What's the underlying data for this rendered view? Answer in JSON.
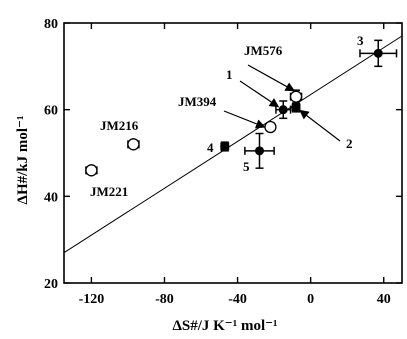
{
  "chart_data": {
    "type": "scatter",
    "xlabel": "ΔS#/J K⁻¹ mol⁻¹",
    "ylabel": "ΔH#/kJ mol⁻¹",
    "xlim": [
      -135,
      50
    ],
    "ylim": [
      20,
      80
    ],
    "x_ticks": [
      -120,
      -80,
      -40,
      0,
      40
    ],
    "y_ticks": [
      20,
      40,
      60,
      80
    ],
    "x_tick_labels": [
      "-120",
      "-80",
      "-40",
      "0",
      "40"
    ],
    "y_tick_labels": [
      "20",
      "40",
      "60",
      "80"
    ],
    "points": [
      {
        "label": "JM221",
        "x": -120,
        "y": 46,
        "marker": "open",
        "xerr": 3,
        "yerr": 0
      },
      {
        "label": "JM216",
        "x": -97,
        "y": 52,
        "marker": "open",
        "xerr": 3,
        "yerr": 0
      },
      {
        "label": "JM394",
        "x": -22,
        "y": 56,
        "marker": "open",
        "xerr": 0,
        "yerr": 0
      },
      {
        "label": "JM576",
        "x": -8,
        "y": 63,
        "marker": "open",
        "xerr": 3,
        "yerr": 1.5
      },
      {
        "label": "1",
        "x": -15,
        "y": 60,
        "marker": "filled",
        "xerr": 4,
        "yerr": 2
      },
      {
        "label": "2",
        "x": -8,
        "y": 60.5,
        "marker": "filled",
        "xerr": 2,
        "yerr": 1
      },
      {
        "label": "3",
        "x": 37,
        "y": 73,
        "marker": "filled",
        "xerr": 10,
        "yerr": 3
      },
      {
        "label": "4",
        "x": -47,
        "y": 51.5,
        "marker": "filled",
        "xerr": 2,
        "yerr": 1
      },
      {
        "label": "5",
        "x": -28,
        "y": 50.5,
        "marker": "filled",
        "xerr": 8,
        "yerr": 4
      }
    ],
    "fit_line": {
      "x": [
        -135,
        50
      ],
      "y": [
        27,
        77
      ]
    },
    "labels": {
      "JM221": "JM221",
      "JM216": "JM216",
      "JM394": "JM394",
      "JM576": "JM576",
      "p1": "1",
      "p2": "2",
      "p3": "3",
      "p4": "4",
      "p5": "5"
    }
  }
}
